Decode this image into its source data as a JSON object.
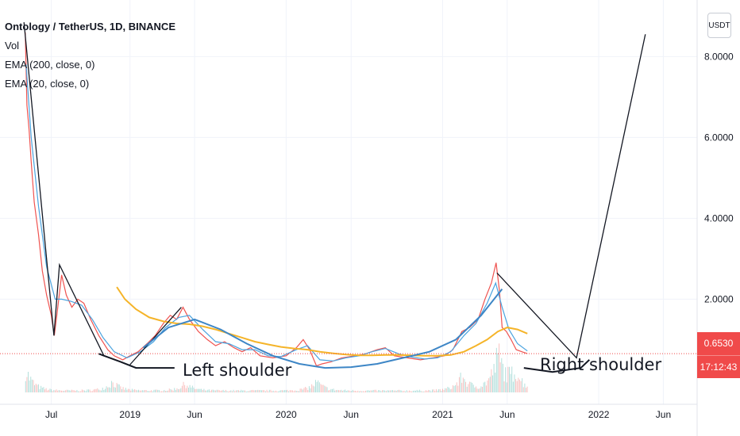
{
  "header": {
    "symbol_title": "Ontology / TetherUS, 1D, BINANCE",
    "indicators": [
      "Vol",
      "EMA (200, close, 0)",
      "EMA (20, close, 0)"
    ]
  },
  "currency_button": "USDT",
  "last_price": {
    "value": "0.6530",
    "countdown": "17:12:43"
  },
  "annotations": {
    "left_shoulder": "Left shoulder",
    "right_shoulder": "Right shoulder"
  },
  "colors": {
    "up": "#26a69a",
    "down": "#ef5350",
    "ema200": "#f5b429",
    "ema20": "#4aa3df",
    "curve": "#3d86c6",
    "drawing": "#131722",
    "last_price_line": "#f04a4a"
  },
  "chart_data": {
    "type": "line",
    "title": "Ontology / TetherUS, 1D, BINANCE",
    "x_ticks": [
      {
        "label": "Jul",
        "date": "2018-07-01"
      },
      {
        "label": "2019",
        "date": "2019-01-01"
      },
      {
        "label": "Jun",
        "date": "2019-06-01"
      },
      {
        "label": "2020",
        "date": "2020-01-01"
      },
      {
        "label": "Jun",
        "date": "2020-06-01"
      },
      {
        "label": "2021",
        "date": "2021-01-01"
      },
      {
        "label": "Jun",
        "date": "2021-06-01"
      },
      {
        "label": "2022",
        "date": "2022-01-01"
      },
      {
        "label": "Jun",
        "date": "2022-06-01"
      }
    ],
    "y_ticks": [
      "2.0000",
      "4.0000",
      "6.0000",
      "8.0000"
    ],
    "ylim": [
      -0.6,
      9.4
    ],
    "xlim": [
      "2018-03-03",
      "2022-08-19"
    ],
    "series": [
      {
        "key": "price",
        "points": [
          [
            "2018-05-01",
            8.6
          ],
          [
            "2018-05-05",
            6.8
          ],
          [
            "2018-05-10",
            6.2
          ],
          [
            "2018-05-15",
            5.4
          ],
          [
            "2018-05-22",
            4.4
          ],
          [
            "2018-06-01",
            3.6
          ],
          [
            "2018-06-10",
            2.7
          ],
          [
            "2018-06-20",
            2.1
          ],
          [
            "2018-07-01",
            1.6
          ],
          [
            "2018-07-08",
            1.1
          ],
          [
            "2018-07-15",
            1.7
          ],
          [
            "2018-07-25",
            2.6
          ],
          [
            "2018-08-05",
            2.1
          ],
          [
            "2018-08-18",
            1.8
          ],
          [
            "2018-09-01",
            2.0
          ],
          [
            "2018-09-15",
            1.9
          ],
          [
            "2018-10-01",
            1.5
          ],
          [
            "2018-10-20",
            1.1
          ],
          [
            "2018-11-10",
            0.75
          ],
          [
            "2018-11-25",
            0.6
          ],
          [
            "2018-12-15",
            0.5
          ],
          [
            "2019-01-01",
            0.6
          ],
          [
            "2019-01-20",
            0.7
          ],
          [
            "2019-02-10",
            0.9
          ],
          [
            "2019-03-01",
            1.1
          ],
          [
            "2019-03-20",
            1.4
          ],
          [
            "2019-04-05",
            1.6
          ],
          [
            "2019-04-20",
            1.5
          ],
          [
            "2019-05-05",
            1.8
          ],
          [
            "2019-05-20",
            1.5
          ],
          [
            "2019-06-10",
            1.2
          ],
          [
            "2019-07-01",
            1.0
          ],
          [
            "2019-07-20",
            0.85
          ],
          [
            "2019-08-10",
            0.95
          ],
          [
            "2019-09-01",
            0.8
          ],
          [
            "2019-09-20",
            0.7
          ],
          [
            "2019-10-10",
            0.8
          ],
          [
            "2019-11-01",
            0.6
          ],
          [
            "2019-12-01",
            0.55
          ],
          [
            "2020-01-01",
            0.6
          ],
          [
            "2020-01-25",
            0.8
          ],
          [
            "2020-02-10",
            1.0
          ],
          [
            "2020-02-25",
            0.75
          ],
          [
            "2020-03-12",
            0.35
          ],
          [
            "2020-03-25",
            0.4
          ],
          [
            "2020-04-15",
            0.45
          ],
          [
            "2020-05-10",
            0.55
          ],
          [
            "2020-06-10",
            0.6
          ],
          [
            "2020-07-05",
            0.65
          ],
          [
            "2020-08-01",
            0.75
          ],
          [
            "2020-08-20",
            0.8
          ],
          [
            "2020-09-10",
            0.6
          ],
          [
            "2020-10-10",
            0.55
          ],
          [
            "2020-11-10",
            0.5
          ],
          [
            "2020-12-10",
            0.55
          ],
          [
            "2021-01-05",
            0.6
          ],
          [
            "2021-01-25",
            0.75
          ],
          [
            "2021-02-15",
            1.2
          ],
          [
            "2021-03-05",
            1.3
          ],
          [
            "2021-03-25",
            1.5
          ],
          [
            "2021-04-10",
            2.0
          ],
          [
            "2021-04-25",
            2.4
          ],
          [
            "2021-05-06",
            2.9
          ],
          [
            "2021-05-14",
            2.2
          ],
          [
            "2021-05-20",
            1.3
          ],
          [
            "2021-05-30",
            1.2
          ],
          [
            "2021-06-10",
            1.0
          ],
          [
            "2021-06-22",
            0.75
          ],
          [
            "2021-07-05",
            0.7
          ],
          [
            "2021-07-18",
            0.653
          ]
        ]
      },
      {
        "key": "ema20",
        "points": [
          [
            "2018-05-03",
            7.8
          ],
          [
            "2018-05-15",
            6.0
          ],
          [
            "2018-06-01",
            4.3
          ],
          [
            "2018-06-20",
            2.8
          ],
          [
            "2018-07-10",
            2.0
          ],
          [
            "2018-07-25",
            2.0
          ],
          [
            "2018-08-15",
            1.95
          ],
          [
            "2018-09-10",
            1.85
          ],
          [
            "2018-10-05",
            1.5
          ],
          [
            "2018-10-30",
            1.05
          ],
          [
            "2018-11-25",
            0.7
          ],
          [
            "2018-12-25",
            0.55
          ],
          [
            "2019-01-25",
            0.7
          ],
          [
            "2019-02-25",
            0.95
          ],
          [
            "2019-03-25",
            1.3
          ],
          [
            "2019-04-25",
            1.55
          ],
          [
            "2019-05-20",
            1.6
          ],
          [
            "2019-06-20",
            1.25
          ],
          [
            "2019-07-20",
            0.95
          ],
          [
            "2019-08-20",
            0.9
          ],
          [
            "2019-09-20",
            0.75
          ],
          [
            "2019-10-20",
            0.75
          ],
          [
            "2019-11-20",
            0.6
          ],
          [
            "2019-12-20",
            0.58
          ],
          [
            "2020-01-25",
            0.75
          ],
          [
            "2020-02-20",
            0.85
          ],
          [
            "2020-03-20",
            0.5
          ],
          [
            "2020-04-20",
            0.47
          ],
          [
            "2020-05-20",
            0.55
          ],
          [
            "2020-06-20",
            0.6
          ],
          [
            "2020-07-20",
            0.7
          ],
          [
            "2020-08-20",
            0.78
          ],
          [
            "2020-09-20",
            0.65
          ],
          [
            "2020-10-20",
            0.57
          ],
          [
            "2020-11-20",
            0.52
          ],
          [
            "2020-12-20",
            0.55
          ],
          [
            "2021-01-20",
            0.7
          ],
          [
            "2021-02-20",
            1.1
          ],
          [
            "2021-03-20",
            1.4
          ],
          [
            "2021-04-15",
            1.9
          ],
          [
            "2021-05-05",
            2.4
          ],
          [
            "2021-05-20",
            1.8
          ],
          [
            "2021-06-05",
            1.25
          ],
          [
            "2021-06-25",
            0.9
          ],
          [
            "2021-07-18",
            0.72
          ]
        ]
      },
      {
        "key": "ema200",
        "points": [
          [
            "2018-12-01",
            2.3
          ],
          [
            "2018-12-20",
            2.0
          ],
          [
            "2019-01-15",
            1.75
          ],
          [
            "2019-02-15",
            1.55
          ],
          [
            "2019-03-20",
            1.45
          ],
          [
            "2019-04-20",
            1.4
          ],
          [
            "2019-05-20",
            1.38
          ],
          [
            "2019-06-20",
            1.33
          ],
          [
            "2019-07-20",
            1.25
          ],
          [
            "2019-08-20",
            1.15
          ],
          [
            "2019-09-20",
            1.05
          ],
          [
            "2019-10-20",
            0.95
          ],
          [
            "2019-11-20",
            0.88
          ],
          [
            "2019-12-20",
            0.82
          ],
          [
            "2020-01-20",
            0.78
          ],
          [
            "2020-02-20",
            0.75
          ],
          [
            "2020-03-20",
            0.7
          ],
          [
            "2020-04-20",
            0.66
          ],
          [
            "2020-05-20",
            0.63
          ],
          [
            "2020-06-20",
            0.61
          ],
          [
            "2020-07-20",
            0.61
          ],
          [
            "2020-08-20",
            0.62
          ],
          [
            "2020-09-20",
            0.62
          ],
          [
            "2020-10-20",
            0.61
          ],
          [
            "2020-11-20",
            0.6
          ],
          [
            "2020-12-20",
            0.6
          ],
          [
            "2021-01-20",
            0.62
          ],
          [
            "2021-02-20",
            0.7
          ],
          [
            "2021-03-20",
            0.85
          ],
          [
            "2021-04-15",
            1.0
          ],
          [
            "2021-05-10",
            1.2
          ],
          [
            "2021-06-01",
            1.3
          ],
          [
            "2021-06-25",
            1.25
          ],
          [
            "2021-07-18",
            1.15
          ]
        ]
      }
    ],
    "volume": {
      "start": "2018-05-01",
      "end": "2021-07-18",
      "peaks": [
        [
          "2018-05-01",
          0.6
        ],
        [
          "2018-11-20",
          0.25
        ],
        [
          "2019-05-10",
          0.2
        ],
        [
          "2020-03-12",
          0.25
        ],
        [
          "2021-02-15",
          0.4
        ],
        [
          "2021-05-10",
          1.0
        ],
        [
          "2021-06-20",
          0.5
        ]
      ]
    },
    "drawings": {
      "trend_lines": [
        [
          [
            "2018-04-28",
            8.85
          ],
          [
            "2018-07-07",
            1.1
          ],
          [
            "2018-07-20",
            2.85
          ],
          [
            "2018-11-01",
            0.6
          ]
        ],
        [
          [
            "2019-01-01",
            0.38
          ],
          [
            "2019-05-01",
            1.8
          ]
        ],
        [
          [
            "2021-05-08",
            2.65
          ],
          [
            "2021-11-10",
            0.55
          ],
          [
            "2022-04-20",
            8.55
          ]
        ]
      ],
      "shoulder_bases": [
        [
          [
            "2018-10-20",
            0.65
          ],
          [
            "2018-12-10",
            0.45
          ],
          [
            "2019-01-15",
            0.3
          ],
          [
            "2019-04-15",
            0.3
          ]
        ],
        [
          [
            "2021-07-10",
            0.3
          ],
          [
            "2021-09-15",
            0.2
          ],
          [
            "2021-11-20",
            0.3
          ],
          [
            "2021-12-10",
            0.5
          ]
        ]
      ],
      "cup_curve": [
        [
          "2019-02-01",
          0.8
        ],
        [
          "2019-04-01",
          1.3
        ],
        [
          "2019-06-01",
          1.5
        ],
        [
          "2019-08-01",
          1.25
        ],
        [
          "2019-10-01",
          0.9
        ],
        [
          "2019-12-01",
          0.6
        ],
        [
          "2020-02-01",
          0.4
        ],
        [
          "2020-04-01",
          0.3
        ],
        [
          "2020-06-01",
          0.32
        ],
        [
          "2020-08-01",
          0.4
        ],
        [
          "2020-10-01",
          0.55
        ],
        [
          "2020-12-01",
          0.7
        ],
        [
          "2021-02-01",
          1.0
        ],
        [
          "2021-04-01",
          1.6
        ],
        [
          "2021-05-20",
          2.25
        ]
      ]
    },
    "last_price": 0.653
  }
}
